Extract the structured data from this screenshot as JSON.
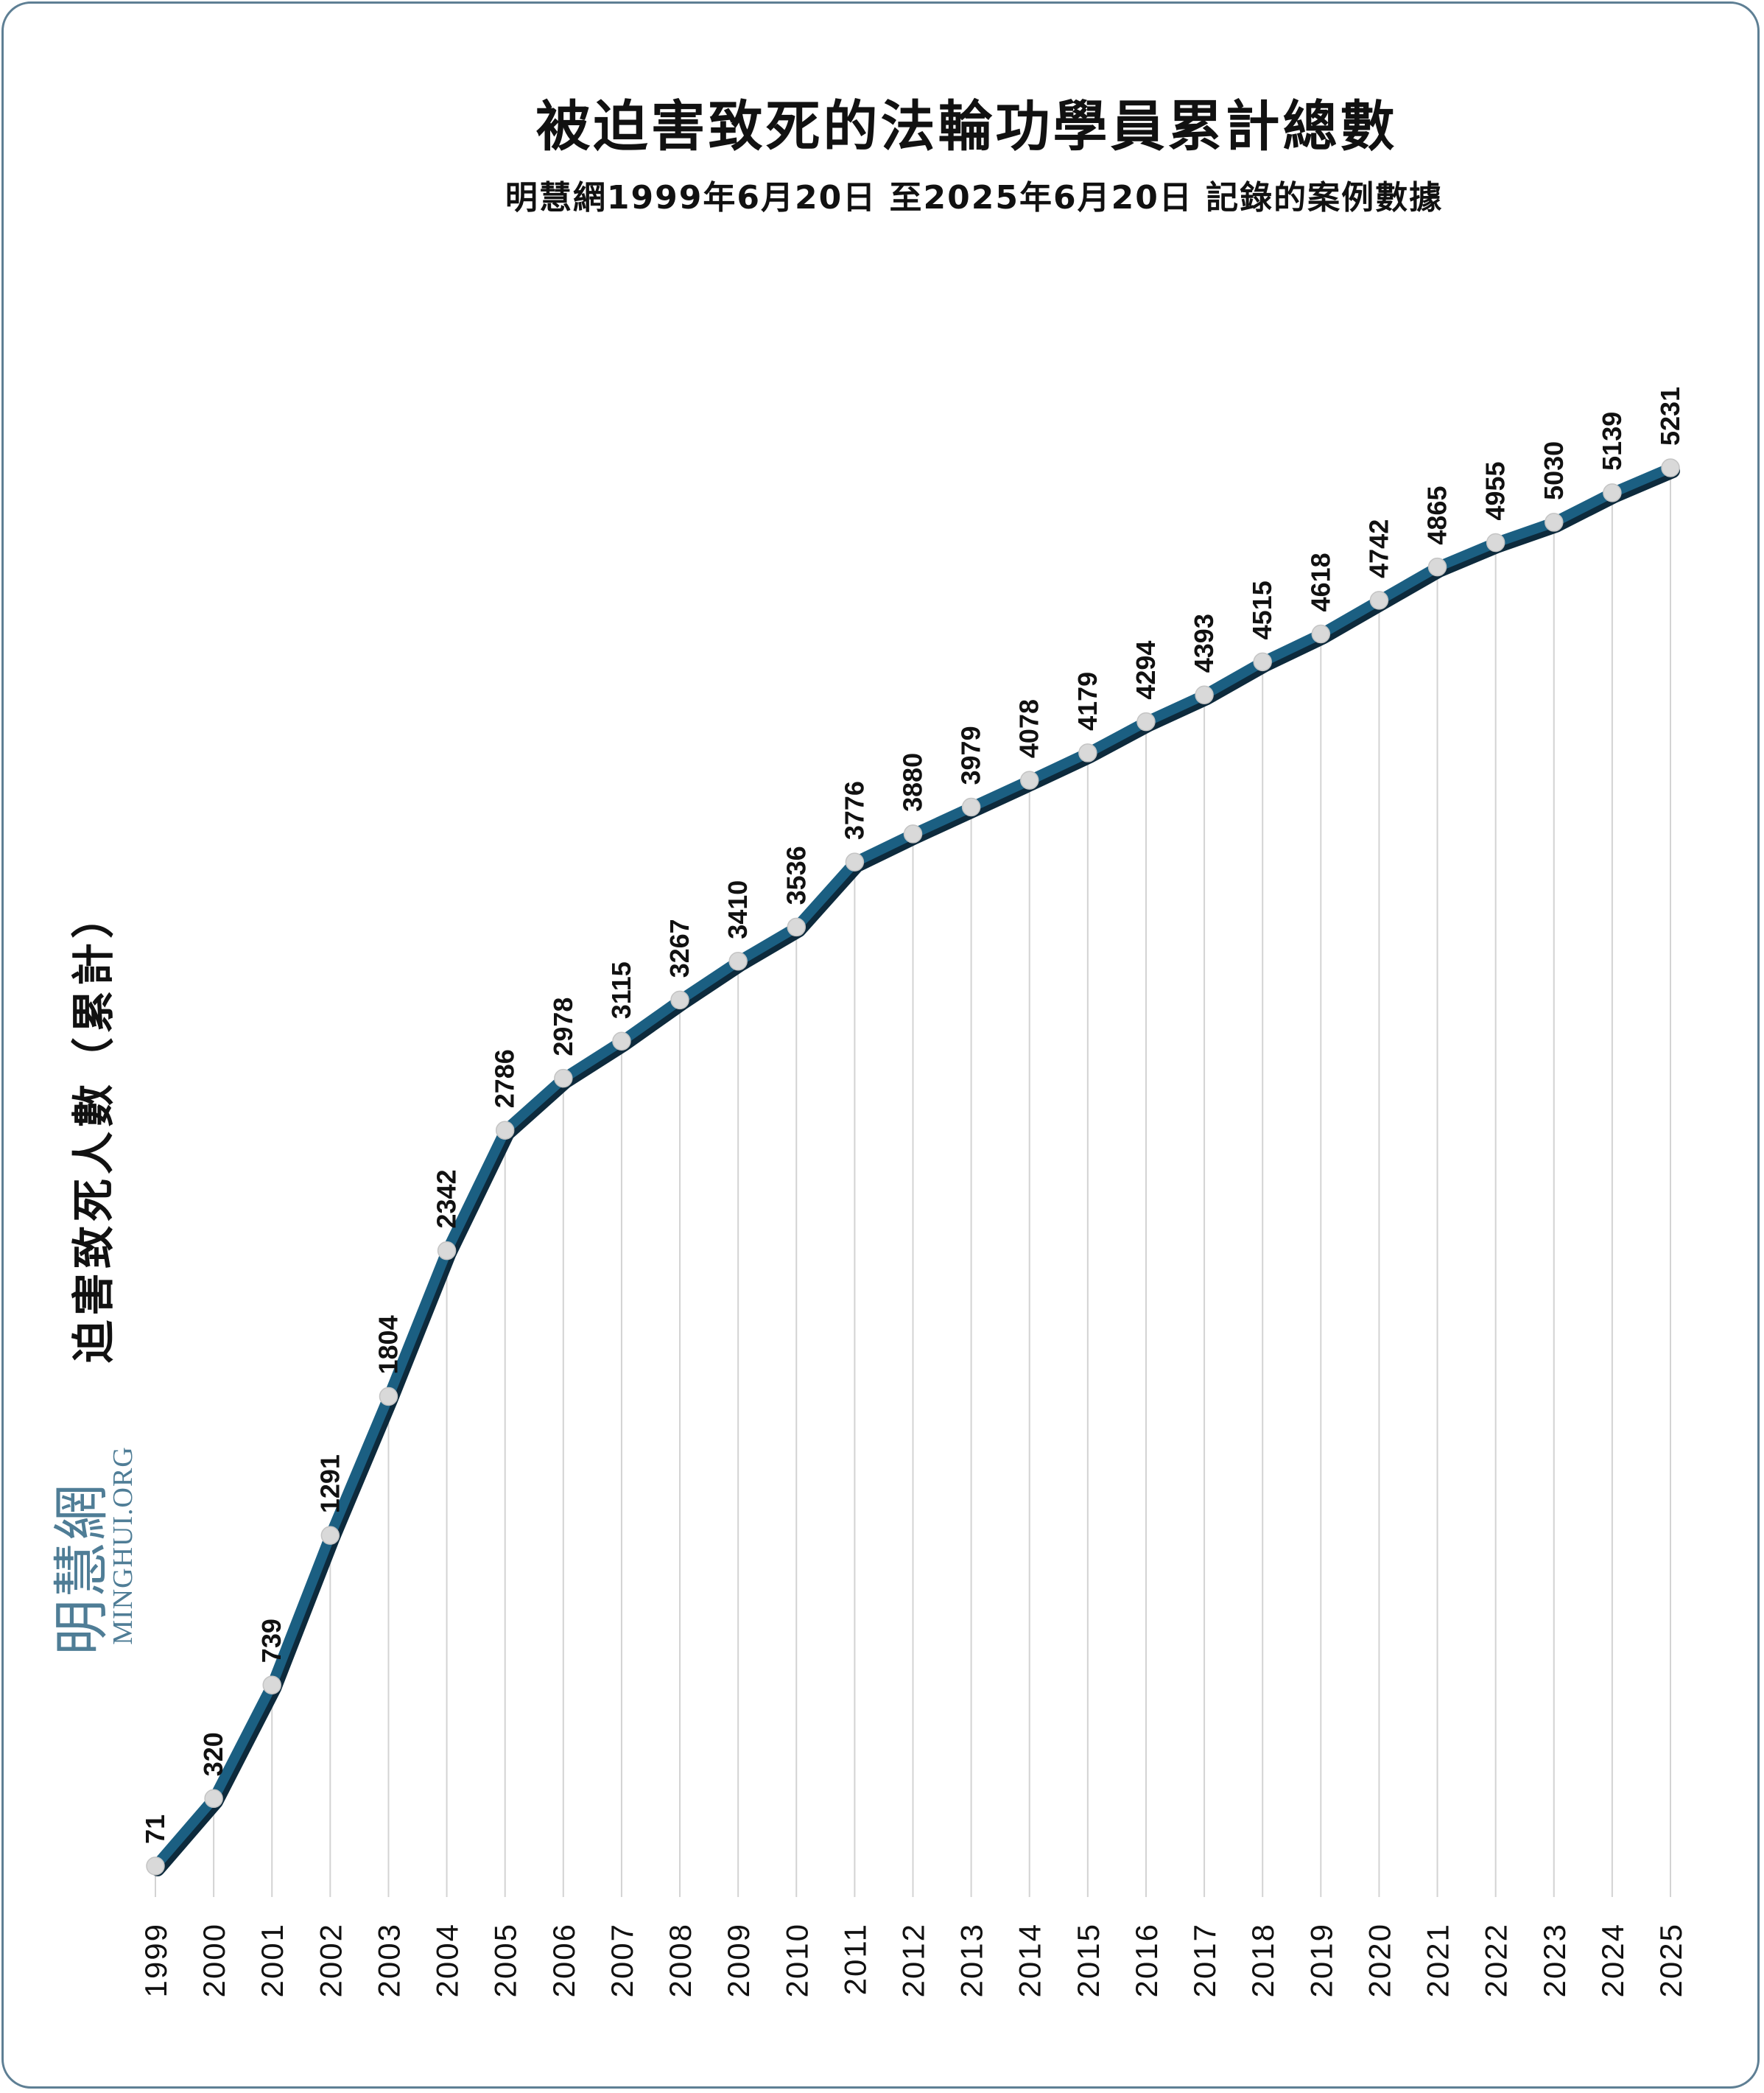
{
  "title": "被迫害致死的法輪功學員累計總數",
  "subtitle": "明慧網1999年6月20日 至2025年6月20日 記錄的案例數據",
  "logo": {
    "chinese": "明慧網",
    "english": "MINGHUI.ORG"
  },
  "colors": {
    "line": "#1b5f82",
    "line_shadow": "#0d2a3c",
    "marker": "#d9d9d9",
    "gridline": "#d3d3d3",
    "logo": "#4f7d96"
  },
  "chart_data": {
    "type": "line",
    "title": "被迫害致死的法輪功學員累計總數",
    "subtitle": "明慧網1999年6月20日 至2025年6月20日 記錄的案例數據",
    "xlabel": "",
    "ylabel": "迫害致死人數（累計）",
    "categories": [
      "1999",
      "2000",
      "2001",
      "2002",
      "2003",
      "2004",
      "2005",
      "2006",
      "2007",
      "2008",
      "2009",
      "2010",
      "2011",
      "2012",
      "2013",
      "2014",
      "2015",
      "2016",
      "2017",
      "2018",
      "2019",
      "2020",
      "2021",
      "2022",
      "2023",
      "2024",
      "2025"
    ],
    "series": [
      {
        "values": [
          71,
          320,
          739,
          1291,
          1804,
          2342,
          2786,
          2978,
          3115,
          3267,
          3410,
          3536,
          3776,
          3880,
          3979,
          4078,
          4179,
          4294,
          4393,
          4515,
          4618,
          4742,
          4865,
          4955,
          5030,
          5139,
          5231
        ]
      }
    ],
    "ylim": [
      0,
      5231
    ],
    "grid": "vertical",
    "data_labels": true,
    "legend": "none"
  }
}
